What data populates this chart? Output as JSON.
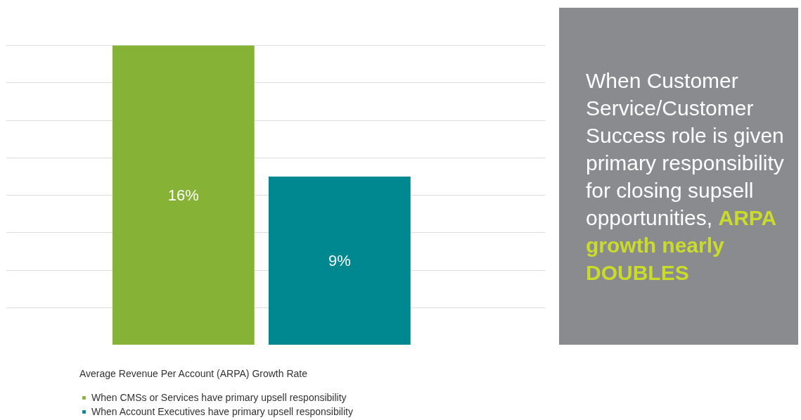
{
  "chart_data": {
    "type": "bar",
    "xlabel": "Average Revenue Per Account (ARPA) Growth Rate",
    "categories": [
      null
    ],
    "series": [
      {
        "name": "When CMSs or Services have primary upsell responsibility",
        "color": "#86b236",
        "values": [
          16
        ],
        "value_labels": [
          "16%"
        ]
      },
      {
        "name": "When Account Executives have primary upsell responsibility",
        "color": "#008891",
        "values": [
          9
        ],
        "value_labels": [
          "9%"
        ]
      }
    ],
    "grid": "y",
    "tick_labels": false,
    "legend": "bottom",
    "annotations": [
      "When Customer Service/Customer Success role is given primary responsibility for closing supsell opportunities,",
      "ARPA growth nearly DOUBLES"
    ]
  }
}
